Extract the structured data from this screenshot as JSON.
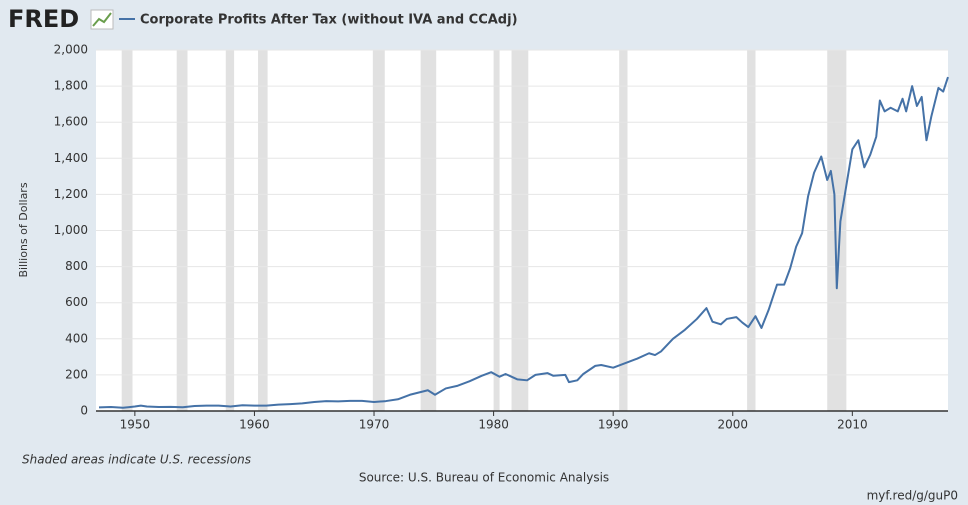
{
  "chart_data": {
    "type": "line",
    "brand": "FRED",
    "title": "Corporate Profits After Tax (without IVA and CCAdj)",
    "y_label": "Billions of Dollars",
    "note": "Shaded areas indicate U.S. recessions",
    "source": "Source: U.S. Bureau of Economic Analysis",
    "link": "myf.red/g/guP0",
    "xlim": [
      1946.75,
      2018
    ],
    "ylim": [
      0,
      2000
    ],
    "xticks": [
      1950,
      1960,
      1970,
      1980,
      1990,
      2000,
      2010
    ],
    "yticks": [
      0,
      200,
      400,
      600,
      800,
      {
        "value": 1000,
        "label": "1,000"
      },
      {
        "value": 1200,
        "label": "1,200"
      },
      {
        "value": 1400,
        "label": "1,400"
      },
      {
        "value": 1600,
        "label": "1,600"
      },
      {
        "value": 1800,
        "label": "1,800"
      },
      {
        "value": 2000,
        "label": "2,000"
      }
    ],
    "grid": true,
    "shaded_periods": [
      [
        1948.9,
        1949.8
      ],
      [
        1953.5,
        1954.4
      ],
      [
        1957.6,
        1958.3
      ],
      [
        1960.3,
        1961.1
      ],
      [
        1969.9,
        1970.9
      ],
      [
        1973.9,
        1975.2
      ],
      [
        1980.0,
        1980.5
      ],
      [
        1981.5,
        1982.9
      ],
      [
        1990.5,
        1991.2
      ],
      [
        2001.2,
        2001.9
      ],
      [
        2007.9,
        2009.5
      ]
    ],
    "x": [
      1947,
      1948,
      1949,
      1950,
      1950.5,
      1951,
      1952,
      1953,
      1954,
      1955,
      1956,
      1957,
      1958,
      1959,
      1960,
      1961,
      1962,
      1963,
      1964,
      1965,
      1966,
      1967,
      1968,
      1969,
      1970,
      1971,
      1972,
      1973,
      1974.5,
      1975.1,
      1976,
      1977,
      1978,
      1979,
      1979.8,
      1980.5,
      1981,
      1982,
      1982.8,
      1983.5,
      1984.5,
      1985,
      1986,
      1986.3,
      1987,
      1987.5,
      1988.5,
      1989,
      1990,
      1991,
      1992,
      1993,
      1993.5,
      1994,
      1995,
      1996,
      1997,
      1997.8,
      1998.3,
      1999,
      1999.5,
      2000.3,
      2000.8,
      2001.3,
      2001.9,
      2002.4,
      2003,
      2003.7,
      2004.3,
      2004.8,
      2005.3,
      2005.8,
      2006.3,
      2006.8,
      2007.4,
      2007.9,
      2008.2,
      2008.5,
      2008.7,
      2009.0,
      2009.5,
      2010,
      2010.5,
      2011,
      2011.5,
      2012,
      2012.3,
      2012.7,
      2013.2,
      2013.8,
      2014.2,
      2014.5,
      2015,
      2015.4,
      2015.8,
      2016.2,
      2016.6,
      2017.2,
      2017.6,
      2018
    ],
    "series": [
      {
        "name": "Corporate Profits After Tax (without IVA and CCAdj)",
        "color": "#4572a7",
        "values": [
          20,
          22,
          18,
          25,
          30,
          25,
          22,
          23,
          21,
          28,
          30,
          30,
          25,
          32,
          30,
          30,
          35,
          38,
          42,
          50,
          55,
          53,
          56,
          56,
          50,
          55,
          65,
          90,
          115,
          90,
          125,
          140,
          165,
          195,
          215,
          190,
          205,
          175,
          170,
          200,
          210,
          195,
          200,
          160,
          170,
          205,
          250,
          255,
          240,
          265,
          290,
          320,
          310,
          330,
          400,
          450,
          510,
          570,
          495,
          480,
          510,
          520,
          490,
          465,
          525,
          460,
          560,
          700,
          700,
          790,
          910,
          985,
          1190,
          1320,
          1410,
          1280,
          1330,
          1200,
          680,
          1050,
          1250,
          1450,
          1500,
          1350,
          1420,
          1520,
          1720,
          1660,
          1680,
          1660,
          1730,
          1660,
          1800,
          1690,
          1740,
          1500,
          1630,
          1790,
          1770,
          1850
        ]
      }
    ]
  }
}
